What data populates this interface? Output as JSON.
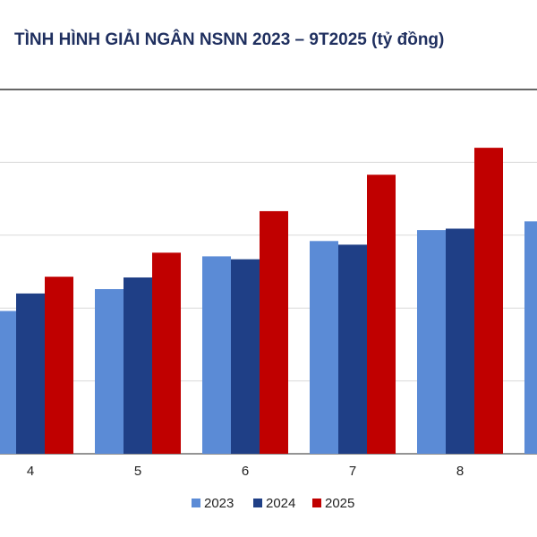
{
  "chart_data": {
    "type": "bar",
    "title": "TÌNH HÌNH GIẢI NGÂN NSNN 2023 – 9T2025 (tỷ đồng)",
    "categories": [
      "4",
      "5",
      "6",
      "7",
      "8",
      null
    ],
    "series": [
      {
        "name": "2023",
        "color": "#5b8bd6",
        "values": [
          1.96,
          2.26,
          2.71,
          2.92,
          3.07,
          3.19
        ]
      },
      {
        "name": "2024",
        "color": "#1f3f86",
        "values": [
          2.2,
          2.42,
          2.67,
          2.87,
          3.09,
          null
        ]
      },
      {
        "name": "2025",
        "color": "#c00000",
        "values": [
          2.43,
          2.76,
          3.33,
          3.83,
          4.2,
          null
        ]
      }
    ],
    "ylim": [
      0,
      5
    ],
    "yticks": [
      0,
      1,
      2,
      3,
      4
    ],
    "grid": true,
    "legend": "bottom"
  }
}
